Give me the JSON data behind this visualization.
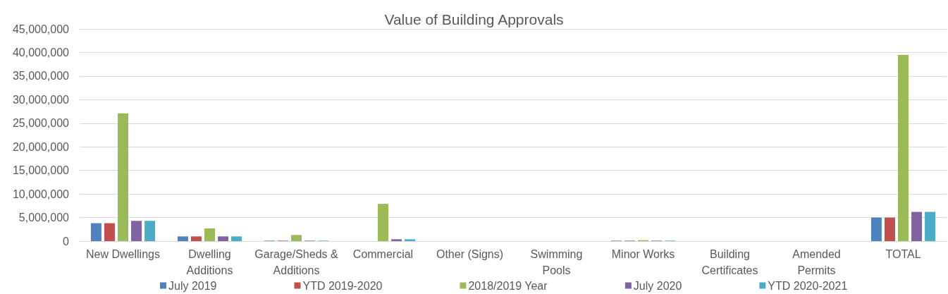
{
  "chart_data": {
    "type": "bar",
    "title": "Value of Building Approvals",
    "categories": [
      "New Dwellings",
      "Dwelling Additions",
      "Garage/Sheds & Additions",
      "Commercial",
      "Other (Signs)",
      "Swimming Pools",
      "Minor Works",
      "Building Certificates",
      "Amended Permits",
      "TOTAL"
    ],
    "series": [
      {
        "name": "July 2019",
        "color": "#4f81bd",
        "values": [
          3800000,
          1000000,
          100000,
          0,
          0,
          0,
          100000,
          0,
          0,
          5000000
        ]
      },
      {
        "name": "YTD 2019-2020",
        "color": "#c0504d",
        "values": [
          3800000,
          1000000,
          100000,
          0,
          0,
          0,
          100000,
          0,
          0,
          5000000
        ]
      },
      {
        "name": "2018/2019 Year",
        "color": "#9bbb59",
        "values": [
          27100000,
          2700000,
          1300000,
          7900000,
          0,
          0,
          200000,
          0,
          0,
          39500000
        ]
      },
      {
        "name": "July 2020",
        "color": "#8064a2",
        "values": [
          4300000,
          1000000,
          100000,
          400000,
          0,
          0,
          100000,
          0,
          0,
          6200000
        ]
      },
      {
        "name": "YTD 2020-2021",
        "color": "#4bacc6",
        "values": [
          4300000,
          1000000,
          100000,
          400000,
          0,
          0,
          100000,
          0,
          0,
          6200000
        ]
      }
    ],
    "ylim": [
      0,
      45000000
    ],
    "yticks": [
      0,
      {
        "value": 5000000,
        "label": "5,000,000"
      },
      {
        "value": 10000000,
        "label": "10,000,000"
      },
      {
        "value": 15000000,
        "label": "15,000,000"
      },
      {
        "value": 20000000,
        "label": "20,000,000"
      },
      {
        "value": 25000000,
        "label": "25,000,000"
      },
      {
        "value": 30000000,
        "label": "30,000,000"
      },
      {
        "value": 35000000,
        "label": "35,000,000"
      },
      {
        "value": 40000000,
        "label": "40,000,000"
      },
      {
        "value": 45000000,
        "label": "45,000,000"
      }
    ],
    "grid": "y",
    "legend": "bottom"
  }
}
